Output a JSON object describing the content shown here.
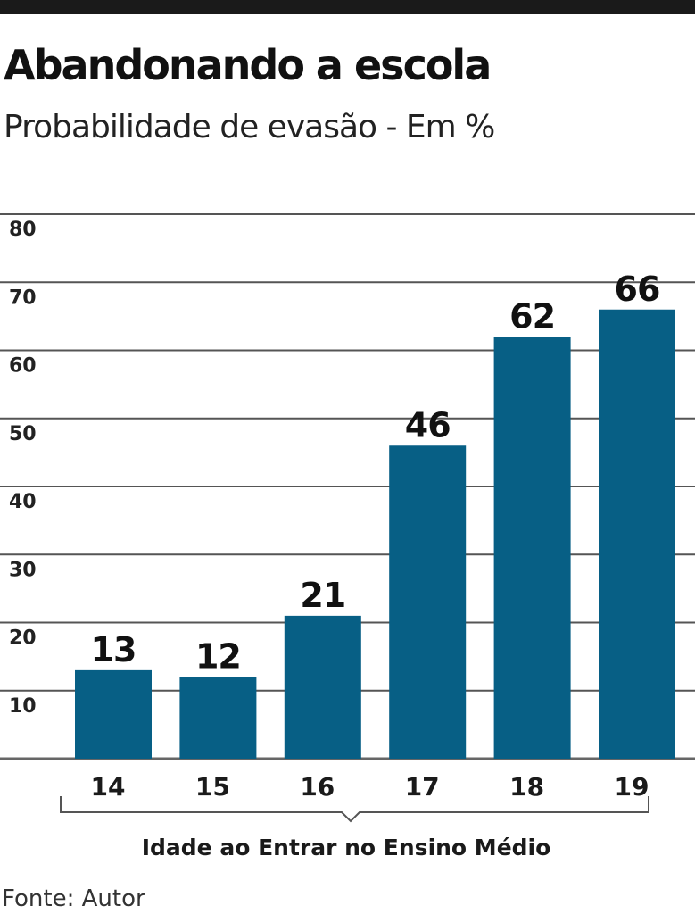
{
  "chart_data": {
    "type": "bar",
    "title": "Abandonando a escola",
    "subtitle": "Probabilidade de evasão - Em %",
    "categories": [
      "14",
      "15",
      "16",
      "17",
      "18",
      "19"
    ],
    "values": [
      13,
      12,
      21,
      46,
      62,
      66
    ],
    "xlabel": "Idade ao Entrar no Ensino Médio",
    "ylabel": "",
    "ylim": [
      0,
      80
    ],
    "yticks": [
      10,
      20,
      30,
      40,
      50,
      60,
      70,
      80
    ],
    "grid": true,
    "bar_color": "#075f85",
    "source": "Fonte: Autor"
  }
}
